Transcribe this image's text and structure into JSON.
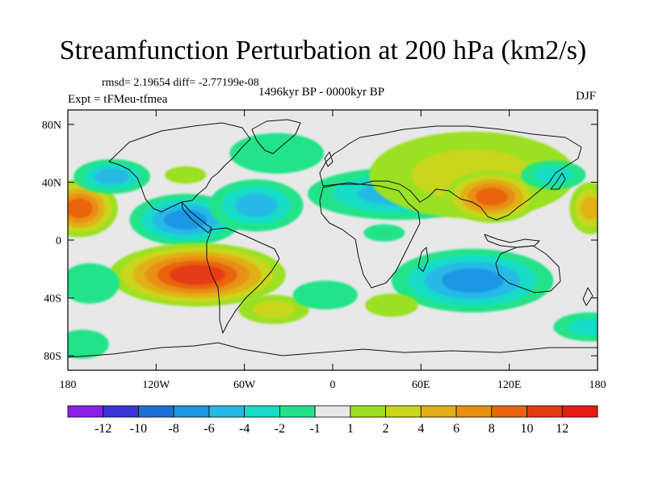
{
  "header": {
    "title": "Streamfunction Perturbation at 200 hPa (km2/s)",
    "stats": "rmsd= 2.19654 diff= -2.77199e-08",
    "period": "1496kyr BP - 0000kyr BP",
    "experiment": "Expt = tFMeu-tfmea",
    "season": "DJF"
  },
  "chart_data": {
    "type": "heatmap",
    "title": "Streamfunction Perturbation at 200 hPa (km2/s)",
    "xlabel": "",
    "ylabel": "",
    "xlim": [
      -180,
      180
    ],
    "ylim": [
      -90,
      90
    ],
    "x_ticks": [
      {
        "value": -180,
        "label": "180"
      },
      {
        "value": -120,
        "label": "120W"
      },
      {
        "value": -60,
        "label": "60W"
      },
      {
        "value": 0,
        "label": "0"
      },
      {
        "value": 60,
        "label": "60E"
      },
      {
        "value": 120,
        "label": "120E"
      },
      {
        "value": 180,
        "label": "180"
      }
    ],
    "y_ticks": [
      {
        "value": 80,
        "label": "80N"
      },
      {
        "value": 40,
        "label": "40N"
      },
      {
        "value": 0,
        "label": "0"
      },
      {
        "value": -40,
        "label": "40S"
      },
      {
        "value": -80,
        "label": "80S"
      }
    ],
    "colorbar": {
      "levels": [
        "-12",
        "-10",
        "-8",
        "-6",
        "-4",
        "-2",
        "-1",
        "1",
        "2",
        "4",
        "6",
        "8",
        "10",
        "12"
      ],
      "colors": [
        "#8c1fe8",
        "#3a35d6",
        "#1f6fd8",
        "#1c97e3",
        "#25b9e6",
        "#18dcc6",
        "#22e38a",
        "#e8e8e8",
        "#9be020",
        "#c9d61e",
        "#e0b018",
        "#e88f12",
        "#ea6410",
        "#e53a12",
        "#e81a14"
      ]
    },
    "features": [
      {
        "name": "anomaly-positive-central-pacific-north",
        "lon": -172,
        "lat": 22,
        "rlon": 26,
        "rlat": 20,
        "value": 9
      },
      {
        "name": "anomaly-positive-west-pacific-north",
        "lon": 175,
        "lat": 22,
        "rlon": 14,
        "rlat": 18,
        "value": 4
      },
      {
        "name": "anomaly-negative-north-pacific",
        "lon": -150,
        "lat": 44,
        "rlon": 26,
        "rlat": 12,
        "value": -4
      },
      {
        "name": "anomaly-negative-caribbean",
        "lon": -100,
        "lat": 14,
        "rlon": 38,
        "rlat": 18,
        "value": -7
      },
      {
        "name": "anomaly-negative-central-atlantic-north",
        "lon": -52,
        "lat": 24,
        "rlon": 32,
        "rlat": 18,
        "value": -4
      },
      {
        "name": "anomaly-positive-north-america",
        "lon": -100,
        "lat": 45,
        "rlon": 14,
        "rlat": 6,
        "value": 1.5
      },
      {
        "name": "anomaly-negative-greenland",
        "lon": -38,
        "lat": 60,
        "rlon": 32,
        "rlat": 14,
        "value": -1.5
      },
      {
        "name": "anomaly-positive-south-america",
        "lon": -92,
        "lat": -24,
        "rlon": 60,
        "rlat": 22,
        "value": 10
      },
      {
        "name": "anomaly-positive-south-atlantic",
        "lon": -40,
        "lat": -48,
        "rlon": 24,
        "rlat": 10,
        "value": 3
      },
      {
        "name": "anomaly-negative-south-atlantic",
        "lon": -5,
        "lat": -38,
        "rlon": 22,
        "rlat": 10,
        "value": -1.5
      },
      {
        "name": "anomaly-negative-south-pacific",
        "lon": -165,
        "lat": -30,
        "rlon": 20,
        "rlat": 14,
        "value": -1.5
      },
      {
        "name": "anomaly-negative-southern-ocean-west",
        "lon": -170,
        "lat": -72,
        "rlon": 18,
        "rlat": 10,
        "value": -1.5
      },
      {
        "name": "anomaly-negative-north-africa",
        "lon": 45,
        "lat": 32,
        "rlon": 62,
        "rlat": 18,
        "value": -4
      },
      {
        "name": "anomaly-negative-equatorial-atlantic",
        "lon": 35,
        "lat": 5,
        "rlon": 14,
        "rlat": 6,
        "value": -1.5
      },
      {
        "name": "anomaly-positive-eurasia",
        "lon": 95,
        "lat": 45,
        "rlon": 70,
        "rlat": 30,
        "value": 3
      },
      {
        "name": "anomaly-positive-east-asia",
        "lon": 108,
        "lat": 30,
        "rlon": 32,
        "rlat": 18,
        "value": 8
      },
      {
        "name": "anomaly-negative-north-west-pacific",
        "lon": 150,
        "lat": 45,
        "rlon": 22,
        "rlat": 10,
        "value": -3
      },
      {
        "name": "anomaly-negative-indian-ocean",
        "lon": 95,
        "lat": -28,
        "rlon": 55,
        "rlat": 22,
        "value": -6
      },
      {
        "name": "anomaly-positive-south-indian-ocean",
        "lon": 40,
        "lat": -45,
        "rlon": 18,
        "rlat": 8,
        "value": 1.5
      },
      {
        "name": "anomaly-negative-south-east-pacific",
        "lon": 175,
        "lat": -60,
        "rlon": 25,
        "rlat": 10,
        "value": -3
      }
    ]
  }
}
